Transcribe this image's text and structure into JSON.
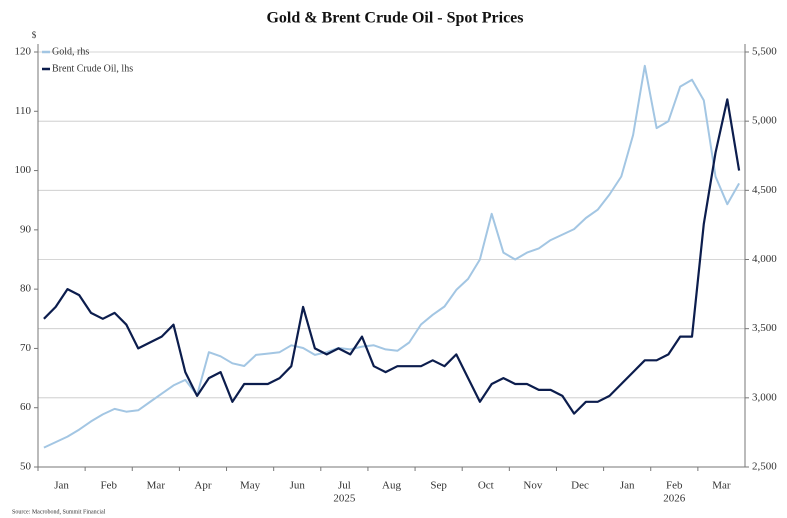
{
  "chart_data": {
    "type": "line",
    "title": "Gold & Brent Crude Oil - Spot Prices",
    "ylabel": "$",
    "source": "Source: Macrobond, Summit Financial",
    "years": [
      "2025",
      "2026"
    ],
    "categories": [
      null,
      "Jan",
      null,
      null,
      null,
      "Feb",
      null,
      null,
      null,
      "Mar",
      null,
      null,
      null,
      "Apr",
      null,
      null,
      null,
      "May",
      null,
      null,
      null,
      "Jun",
      null,
      null,
      null,
      "Jul",
      null,
      null,
      null,
      "Aug",
      null,
      null,
      null,
      "Sep",
      null,
      null,
      null,
      "Oct",
      null,
      null,
      null,
      "Nov",
      null,
      null,
      null,
      "Dec",
      null,
      null,
      null,
      "Jan",
      null,
      null,
      null,
      "Feb",
      null,
      null,
      null,
      "Mar",
      null,
      null
    ],
    "series": [
      {
        "name": "Gold, rhs",
        "color": "#a3c6e3",
        "axis": "y2",
        "values": [
          2640,
          2680,
          2720,
          2770,
          2830,
          2880,
          2920,
          2900,
          2910,
          2970,
          3030,
          3090,
          3130,
          3020,
          3330,
          3300,
          3250,
          3230,
          3310,
          3320,
          3330,
          3380,
          3360,
          3310,
          3330,
          3360,
          3350,
          3370,
          3380,
          3350,
          3340,
          3400,
          3530,
          3600,
          3660,
          3780,
          3860,
          4000,
          4330,
          4050,
          4000,
          4050,
          4080,
          4140,
          4180,
          4220,
          4300,
          4360,
          4470,
          4600,
          4900,
          5400,
          4950,
          5000,
          5250,
          5300,
          5150,
          4600,
          4400,
          4550
        ]
      },
      {
        "name": "Brent Crude Oil, lhs",
        "color": "#0c1d4d",
        "axis": "y",
        "values": [
          75,
          77,
          80,
          79,
          76,
          75,
          76,
          74,
          70,
          71,
          72,
          74,
          66,
          62,
          65,
          66,
          61,
          64,
          64,
          64,
          65,
          67,
          77,
          70,
          69,
          70,
          69,
          72,
          67,
          66,
          67,
          67,
          67,
          68,
          67,
          69,
          65,
          61,
          64,
          65,
          64,
          64,
          63,
          63,
          62,
          59,
          61,
          61,
          62,
          64,
          66,
          68,
          68,
          69,
          72,
          72,
          91,
          103,
          112,
          100
        ]
      }
    ],
    "ylim": [
      50,
      120
    ],
    "yticks": [
      50,
      60,
      70,
      80,
      90,
      100,
      110,
      120
    ],
    "y2lim": [
      2500,
      5500
    ],
    "y2ticks": [
      {
        "value": 2500,
        "label": "2,500"
      },
      {
        "value": 3000,
        "label": "3,000"
      },
      {
        "value": 3500,
        "label": "3,500"
      },
      {
        "value": 4000,
        "label": "4,000"
      },
      {
        "value": 4500,
        "label": "4,500"
      },
      {
        "value": 5000,
        "label": "5,000"
      },
      {
        "value": 5500,
        "label": "5,500"
      }
    ],
    "grid": true,
    "legend": "top-left"
  }
}
